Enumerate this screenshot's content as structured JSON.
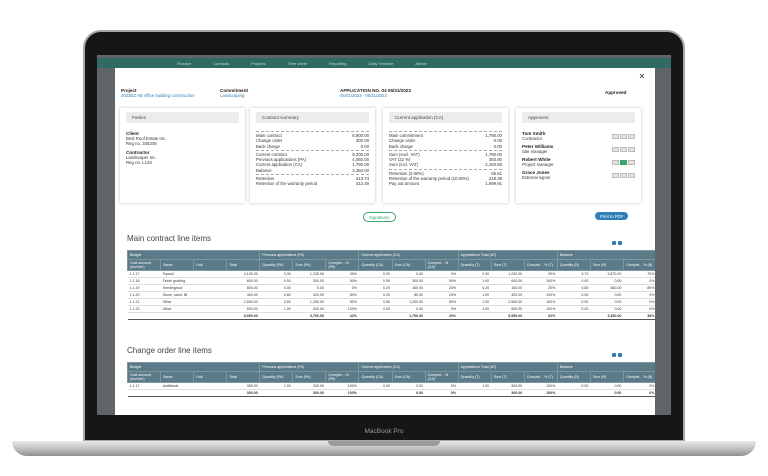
{
  "laptop_label": "MacBook Pro",
  "app_nav": [
    "Finance",
    "Contacts",
    "Projects",
    "Time sheet",
    "Reporting",
    "Daily Timeline",
    "Admin"
  ],
  "modal": {
    "project_label": "Project",
    "project": "2023EZ AB office building construction",
    "commitment_label": "Commitment",
    "commitment": "Landscaping",
    "application_title": "APPLICATION NO. 04 05/31/2023",
    "application_period": "05/01/2023 - 05/31/2023",
    "status": "Approved",
    "parties": {
      "title": "Parties",
      "entries": [
        {
          "role": "Client",
          "name": "Best Roof Estate Inc.",
          "reg": "Reg no. 345345"
        },
        {
          "role": "Contractor",
          "name": "Landscaper Inc.",
          "reg": "Reg no. L123"
        }
      ]
    },
    "contract_summary": {
      "title": "Contract summary",
      "groups": [
        [
          [
            "Main contract",
            "8,900.00"
          ],
          [
            "Change order",
            "300.00"
          ],
          [
            "Back charge",
            "0.00"
          ]
        ],
        [
          [
            "Current contract",
            "9,200.00"
          ],
          [
            "Previous applications (PA)",
            "4,060.00"
          ],
          [
            "Current application (CA)",
            "1,790.00"
          ],
          [
            "Balance",
            "3,350.00"
          ]
        ],
        [
          [
            "Retention",
            "213.74"
          ],
          [
            "Retention of the warranty period",
            "312.49"
          ]
        ]
      ]
    },
    "current_application": {
      "title": "Current application (CA)",
      "groups": [
        [
          [
            "Main commitment",
            "1,790.00"
          ],
          [
            "Change order",
            "0.00"
          ],
          [
            "Back charge",
            "0.00"
          ]
        ],
        [
          [
            "Sum (excl. VAT)",
            "1,790.00"
          ],
          [
            "VAT (22 %)",
            "393.80"
          ],
          [
            "Sum (incl. VAT)",
            "2,183.80"
          ]
        ],
        [
          [
            "Retention (3.00%)",
            "65.51"
          ],
          [
            "Retention of the warranty period (10.00%)",
            "218.38"
          ],
          [
            "Pay out amount",
            "1,899.91"
          ]
        ]
      ]
    },
    "approvers": {
      "title": "Approvers",
      "people": [
        {
          "name": "Tom Smith",
          "role": "Contractor"
        },
        {
          "name": "Peter Williams",
          "role": "Site manager"
        },
        {
          "name": "Robert White",
          "role": "Project manager"
        },
        {
          "name": "Grace Jones",
          "role": "External signer"
        }
      ]
    },
    "signatures_button": "Signatures",
    "print_button": "Print to PDF",
    "tables": [
      {
        "title": "Main contract line items",
        "groups": [
          "Budget",
          "Previous applications (PA)",
          "Current application (CA)",
          "Applications Total (AT)",
          "Balance"
        ],
        "columns": [
          "Cost account (number)",
          "Name",
          "Unit",
          "Total",
          "Quantity (PA)",
          "Sum (PA)",
          "Complet... % (PA)",
          "Quantity (CA)",
          "Sum (CA)",
          "Complet... % (CA)",
          "Quantity (T)",
          "Sum (T)",
          "Complet... % (T)",
          "Quantity (B)",
          "Sum (B)",
          "Complet... % (B)"
        ],
        "rows": [
          [
            "1.1.17",
            "Topsoil",
            null,
            "4,100.00",
            "0.30",
            "1,230.00",
            "30%",
            "0.00",
            "0.00",
            "0%",
            "0.30",
            "1,230.00",
            "30%",
            "0.70",
            "2,870.00",
            "70%"
          ],
          [
            "1.1.18",
            "Finish grading",
            null,
            "600.00",
            "0.50",
            "300.00",
            "50%",
            "0.50",
            "300.00",
            "50%",
            "1.00",
            "600.00",
            "100%",
            "0.00",
            "0.00",
            "0%"
          ],
          [
            "1.1.19",
            "Seeding/sod",
            null,
            "800.00",
            "0.00",
            "0.00",
            "0%",
            "0.20",
            "160.00",
            "20%",
            "0.20",
            "160.00",
            "20%",
            "0.80",
            "640.00",
            "80%"
          ],
          [
            "1.1.20",
            "Stone, sand, fill",
            null,
            "400.00",
            "0.80",
            "320.00",
            "80%",
            "0.20",
            "80.00",
            "20%",
            "1.00",
            "400.00",
            "100%",
            "0.00",
            "0.00",
            "0%"
          ],
          [
            "1.1.21",
            "Other",
            null,
            "2,500.00",
            "0.50",
            "1,250.00",
            "50%",
            "0.50",
            "1,250.00",
            "50%",
            "1.00",
            "2,500.00",
            "100%",
            "0.00",
            "0.00",
            "0%"
          ],
          [
            "1.1.22",
            "Other",
            null,
            "500.00",
            "1.00",
            "500.00",
            "100%",
            "0.00",
            "0.00",
            "0%",
            "1.00",
            "500.00",
            "100%",
            "0.00",
            "0.00",
            "0%"
          ],
          [
            null,
            null,
            null,
            "8,900.00",
            null,
            "3,760.00",
            "42%",
            null,
            "1,790.00",
            "20%",
            null,
            "5,550.00",
            "62%",
            null,
            "3,350.00",
            "38%"
          ]
        ]
      },
      {
        "title": "Change order line items",
        "groups": [
          "Budget",
          "Previous applications (PA)",
          "Current application (CA)",
          "Applications Total (AT)",
          "Balance"
        ],
        "columns": [
          "Cost account (number)",
          "Name",
          "Unit",
          "Total",
          "Quantity (PA)",
          "Sum (PA)",
          "Complet... % (PA)",
          "Quantity (CA)",
          "Sum (CA)",
          "Complet... % (CA)",
          "Quantity (T)",
          "Sum (T)",
          "Complet... % (T)",
          "Quantity (B)",
          "Sum (B)",
          "Complet... % (B)"
        ],
        "rows": [
          [
            "1.1.17",
            "Additional",
            null,
            "300.00",
            "1.00",
            "300.00",
            "100%",
            "0.00",
            "0.00",
            "0%",
            "1.00",
            "300.00",
            "100%",
            "0.00",
            "0.00",
            "0%"
          ],
          [
            null,
            null,
            null,
            "300.00",
            null,
            "300.00",
            "100%",
            null,
            "0.00",
            "0%",
            null,
            "300.00",
            "100%",
            null,
            "0.00",
            "0%"
          ]
        ]
      }
    ]
  }
}
